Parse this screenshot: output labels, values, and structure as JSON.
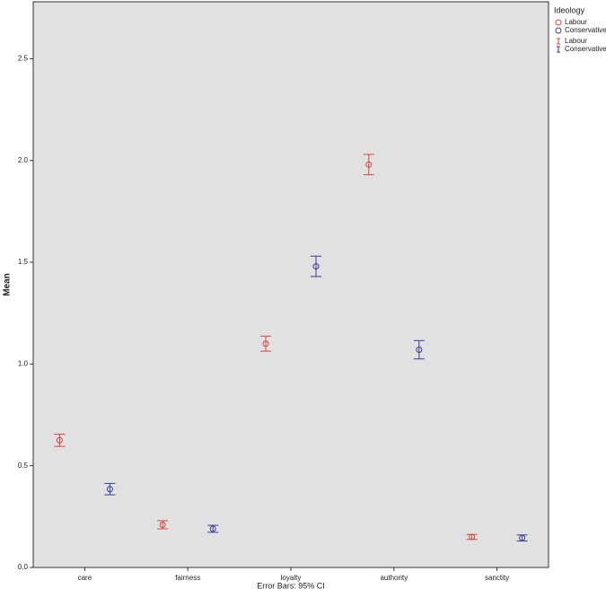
{
  "chart_data": {
    "type": "errorbar",
    "y_label": "Mean",
    "footnote": "Error Bars: 95% CI",
    "legend_title": "Ideology",
    "legend_position": "right",
    "categories": [
      "care",
      "fairness",
      "loyalty",
      "authority",
      "sanctity"
    ],
    "series": [
      {
        "name": "Labour",
        "color": "#d6453b",
        "values": [
          0.625,
          0.21,
          1.1,
          1.98,
          0.15
        ],
        "errors": [
          0.03,
          0.02,
          0.037,
          0.05,
          0.012
        ]
      },
      {
        "name": "Conservative",
        "color": "#3b3a9c",
        "values": [
          0.385,
          0.19,
          1.48,
          1.07,
          0.145
        ],
        "errors": [
          0.028,
          0.017,
          0.05,
          0.045,
          0.015
        ]
      }
    ],
    "ylim": [
      0,
      2.78
    ],
    "yticks": [
      {
        "value": 0,
        "label": "0.0"
      },
      0.5,
      {
        "value": 1,
        "label": "1.0"
      },
      1.5,
      {
        "value": 2,
        "label": "2.0"
      },
      2.5
    ],
    "grid": false
  }
}
